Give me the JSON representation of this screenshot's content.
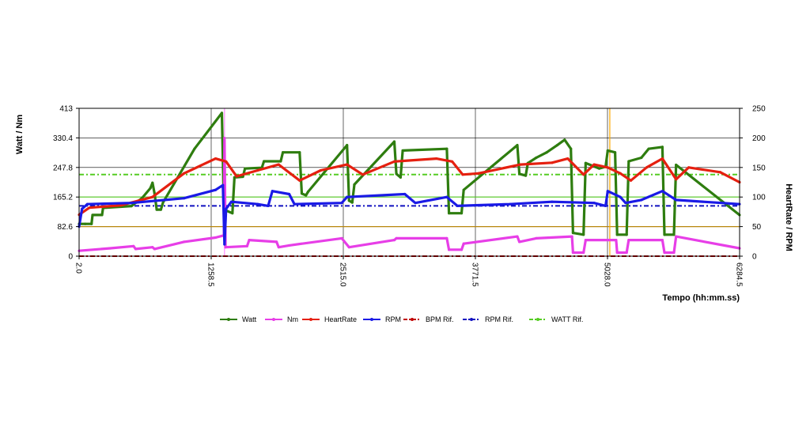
{
  "chart_data": {
    "type": "line",
    "title": "",
    "xlabel": "Tempo (hh:mm.ss)",
    "ylabel_left": "Watt / Nm",
    "ylabel_right": "HeartRate / RPM",
    "xlim": [
      2.0,
      6284.5
    ],
    "ylim_left": [
      0,
      413
    ],
    "ylim_right": [
      0,
      250
    ],
    "x_ticks": [
      "2.0",
      "1258.5",
      "2515.0",
      "3771.5",
      "5028.0",
      "6284.5"
    ],
    "x_tick_values": [
      2.0,
      1258.5,
      2515.0,
      3771.5,
      5028.0,
      6284.5
    ],
    "y_left_ticks": [
      "0",
      "82.6",
      "165.2",
      "247.8",
      "330.4",
      "413"
    ],
    "y_left_tick_values": [
      0,
      82.6,
      165.2,
      247.8,
      330.4,
      413
    ],
    "y_right_ticks": [
      "0",
      "50",
      "100",
      "150",
      "200",
      "250"
    ],
    "y_right_tick_values": [
      0,
      50,
      100,
      150,
      200,
      250
    ],
    "grid": true,
    "legend_position": "bottom",
    "series": [
      {
        "name": "Watt",
        "axis": "left",
        "color": "#2e7d0f",
        "style": "solid",
        "points": [
          [
            2,
            90
          ],
          [
            60,
            90
          ],
          [
            120,
            90
          ],
          [
            130,
            115
          ],
          [
            220,
            115
          ],
          [
            230,
            135
          ],
          [
            500,
            140
          ],
          [
            600,
            162
          ],
          [
            680,
            190
          ],
          [
            700,
            205
          ],
          [
            720,
            175
          ],
          [
            740,
            130
          ],
          [
            780,
            130
          ],
          [
            800,
            150
          ],
          [
            1100,
            300
          ],
          [
            1360,
            400
          ],
          [
            1380,
            130
          ],
          [
            1460,
            120
          ],
          [
            1480,
            220
          ],
          [
            1560,
            222
          ],
          [
            1580,
            245
          ],
          [
            1740,
            247
          ],
          [
            1760,
            265
          ],
          [
            1920,
            265
          ],
          [
            1940,
            290
          ],
          [
            2100,
            290
          ],
          [
            2120,
            175
          ],
          [
            2160,
            170
          ],
          [
            2180,
            180
          ],
          [
            2550,
            310
          ],
          [
            2570,
            155
          ],
          [
            2600,
            150
          ],
          [
            2620,
            200
          ],
          [
            3000,
            320
          ],
          [
            3020,
            230
          ],
          [
            3060,
            220
          ],
          [
            3080,
            295
          ],
          [
            3500,
            300
          ],
          [
            3520,
            120
          ],
          [
            3640,
            120
          ],
          [
            3660,
            185
          ],
          [
            4170,
            310
          ],
          [
            4190,
            230
          ],
          [
            4250,
            225
          ],
          [
            4270,
            260
          ],
          [
            4350,
            275
          ],
          [
            4450,
            290
          ],
          [
            4550,
            310
          ],
          [
            4620,
            325
          ],
          [
            4680,
            300
          ],
          [
            4700,
            65
          ],
          [
            4800,
            60
          ],
          [
            4820,
            260
          ],
          [
            4950,
            245
          ],
          [
            5010,
            250
          ],
          [
            5030,
            295
          ],
          [
            5100,
            290
          ],
          [
            5120,
            60
          ],
          [
            5210,
            60
          ],
          [
            5230,
            265
          ],
          [
            5350,
            275
          ],
          [
            5420,
            300
          ],
          [
            5550,
            305
          ],
          [
            5570,
            60
          ],
          [
            5660,
            60
          ],
          [
            5680,
            255
          ],
          [
            6284,
            115
          ]
        ]
      },
      {
        "name": "Nm",
        "axis": "left",
        "color": "#e73ee7",
        "style": "solid",
        "points": [
          [
            2,
            15
          ],
          [
            300,
            22
          ],
          [
            520,
            28
          ],
          [
            540,
            20
          ],
          [
            700,
            25
          ],
          [
            720,
            20
          ],
          [
            1000,
            40
          ],
          [
            1300,
            52
          ],
          [
            1380,
            58
          ],
          [
            1385,
            330
          ],
          [
            1395,
            25
          ],
          [
            1600,
            28
          ],
          [
            1620,
            45
          ],
          [
            1880,
            40
          ],
          [
            1900,
            25
          ],
          [
            2000,
            30
          ],
          [
            2500,
            50
          ],
          [
            2570,
            25
          ],
          [
            3000,
            45
          ],
          [
            3020,
            50
          ],
          [
            3500,
            50
          ],
          [
            3520,
            18
          ],
          [
            3640,
            18
          ],
          [
            3660,
            35
          ],
          [
            4170,
            55
          ],
          [
            4190,
            40
          ],
          [
            4350,
            50
          ],
          [
            4690,
            55
          ],
          [
            4700,
            10
          ],
          [
            4800,
            10
          ],
          [
            4820,
            45
          ],
          [
            5110,
            45
          ],
          [
            5120,
            10
          ],
          [
            5210,
            10
          ],
          [
            5230,
            45
          ],
          [
            5550,
            45
          ],
          [
            5570,
            10
          ],
          [
            5660,
            10
          ],
          [
            5680,
            55
          ],
          [
            6284,
            22
          ]
        ]
      },
      {
        "name": "HeartRate",
        "axis": "right",
        "color": "#e52010",
        "style": "solid",
        "points": [
          [
            2,
            70
          ],
          [
            100,
            82
          ],
          [
            400,
            86
          ],
          [
            700,
            100
          ],
          [
            1000,
            140
          ],
          [
            1300,
            165
          ],
          [
            1400,
            160
          ],
          [
            1500,
            135
          ],
          [
            1700,
            145
          ],
          [
            1900,
            155
          ],
          [
            2100,
            128
          ],
          [
            2300,
            145
          ],
          [
            2550,
            155
          ],
          [
            2700,
            138
          ],
          [
            3000,
            160
          ],
          [
            3400,
            165
          ],
          [
            3550,
            160
          ],
          [
            3650,
            138
          ],
          [
            3800,
            140
          ],
          [
            4200,
            155
          ],
          [
            4500,
            158
          ],
          [
            4650,
            165
          ],
          [
            4800,
            138
          ],
          [
            4900,
            155
          ],
          [
            5030,
            150
          ],
          [
            5150,
            140
          ],
          [
            5250,
            128
          ],
          [
            5400,
            150
          ],
          [
            5550,
            165
          ],
          [
            5680,
            130
          ],
          [
            5800,
            150
          ],
          [
            6100,
            142
          ],
          [
            6284,
            125
          ]
        ]
      },
      {
        "name": "RPM",
        "axis": "right",
        "color": "#1a1ae6",
        "style": "solid",
        "points": [
          [
            2,
            50
          ],
          [
            30,
            80
          ],
          [
            80,
            88
          ],
          [
            500,
            90
          ],
          [
            1000,
            98
          ],
          [
            1300,
            112
          ],
          [
            1370,
            120
          ],
          [
            1385,
            20
          ],
          [
            1400,
            80
          ],
          [
            1450,
            92
          ],
          [
            1700,
            88
          ],
          [
            1800,
            85
          ],
          [
            1840,
            110
          ],
          [
            2000,
            105
          ],
          [
            2050,
            88
          ],
          [
            2500,
            90
          ],
          [
            2550,
            100
          ],
          [
            3100,
            105
          ],
          [
            3200,
            90
          ],
          [
            3500,
            100
          ],
          [
            3600,
            85
          ],
          [
            4100,
            88
          ],
          [
            4500,
            92
          ],
          [
            4900,
            90
          ],
          [
            5010,
            85
          ],
          [
            5030,
            110
          ],
          [
            5150,
            100
          ],
          [
            5200,
            90
          ],
          [
            5350,
            95
          ],
          [
            5550,
            110
          ],
          [
            5680,
            95
          ],
          [
            6284,
            88
          ]
        ]
      },
      {
        "name": "BPM Rif.",
        "axis": "right",
        "color": "#c00000",
        "style": "dashdot",
        "points": [
          [
            2,
            0
          ],
          [
            6284.5,
            0
          ]
        ]
      },
      {
        "name": "RPM Rif.",
        "axis": "right",
        "color": "#1010c0",
        "style": "dashdot",
        "points": [
          [
            2,
            85
          ],
          [
            6284.5,
            85
          ]
        ]
      },
      {
        "name": "WATT Rif.",
        "axis": "left",
        "color": "#55cc22",
        "style": "dashdot",
        "points": [
          [
            2,
            228
          ],
          [
            6284.5,
            228
          ]
        ]
      }
    ],
    "reference_lines": [
      {
        "axis": "left",
        "value": 165.2,
        "color": "#55cc22"
      },
      {
        "axis": "left",
        "value": 82.6,
        "color": "#b8860b"
      },
      {
        "axis": "x",
        "value": 5050,
        "color": "#ffaa00"
      },
      {
        "axis": "x",
        "value": 1385,
        "color": "#ff88ff"
      }
    ]
  }
}
